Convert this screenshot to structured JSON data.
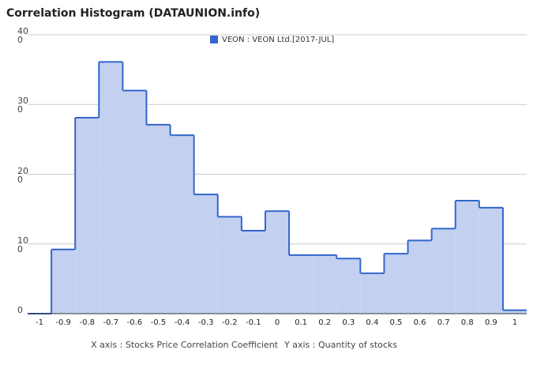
{
  "chart_data": {
    "type": "histogram",
    "title": "Correlation Histogram (DATAUNION.info)",
    "xlabel": "X axis : Stocks Price Correlation Coefficient",
    "ylabel": "Y axis : Quantity of stocks",
    "series": [
      {
        "name": "VEON : VEON Ltd.[2017-JUL]",
        "color": "#3366cc",
        "fill": "#c3d0f0",
        "values": [
          0,
          92,
          281,
          361,
          320,
          271,
          256,
          171,
          139,
          119,
          147,
          84,
          84,
          79,
          58,
          86,
          105,
          122,
          162,
          152,
          5
        ]
      }
    ],
    "bins": [
      -1.05,
      -0.95,
      -0.85,
      -0.75,
      -0.65,
      -0.55,
      -0.45,
      -0.35,
      -0.25,
      -0.15,
      -0.05,
      0.05,
      0.15,
      0.25,
      0.35,
      0.45,
      0.55,
      0.65,
      0.75,
      0.85,
      0.95,
      1.05
    ],
    "xlim": [
      -1.05,
      1.05
    ],
    "xticks": [
      -1,
      -0.9,
      -0.8,
      -0.7,
      -0.6,
      -0.5,
      -0.4,
      -0.3,
      -0.2,
      -0.1,
      0,
      0.1,
      0.2,
      0.3,
      0.4,
      0.5,
      0.6,
      0.7,
      0.8,
      0.9,
      1
    ],
    "ylim": [
      0,
      400
    ],
    "yticks": [
      0,
      100,
      200,
      300,
      400
    ],
    "grid": true,
    "legend": "top"
  }
}
